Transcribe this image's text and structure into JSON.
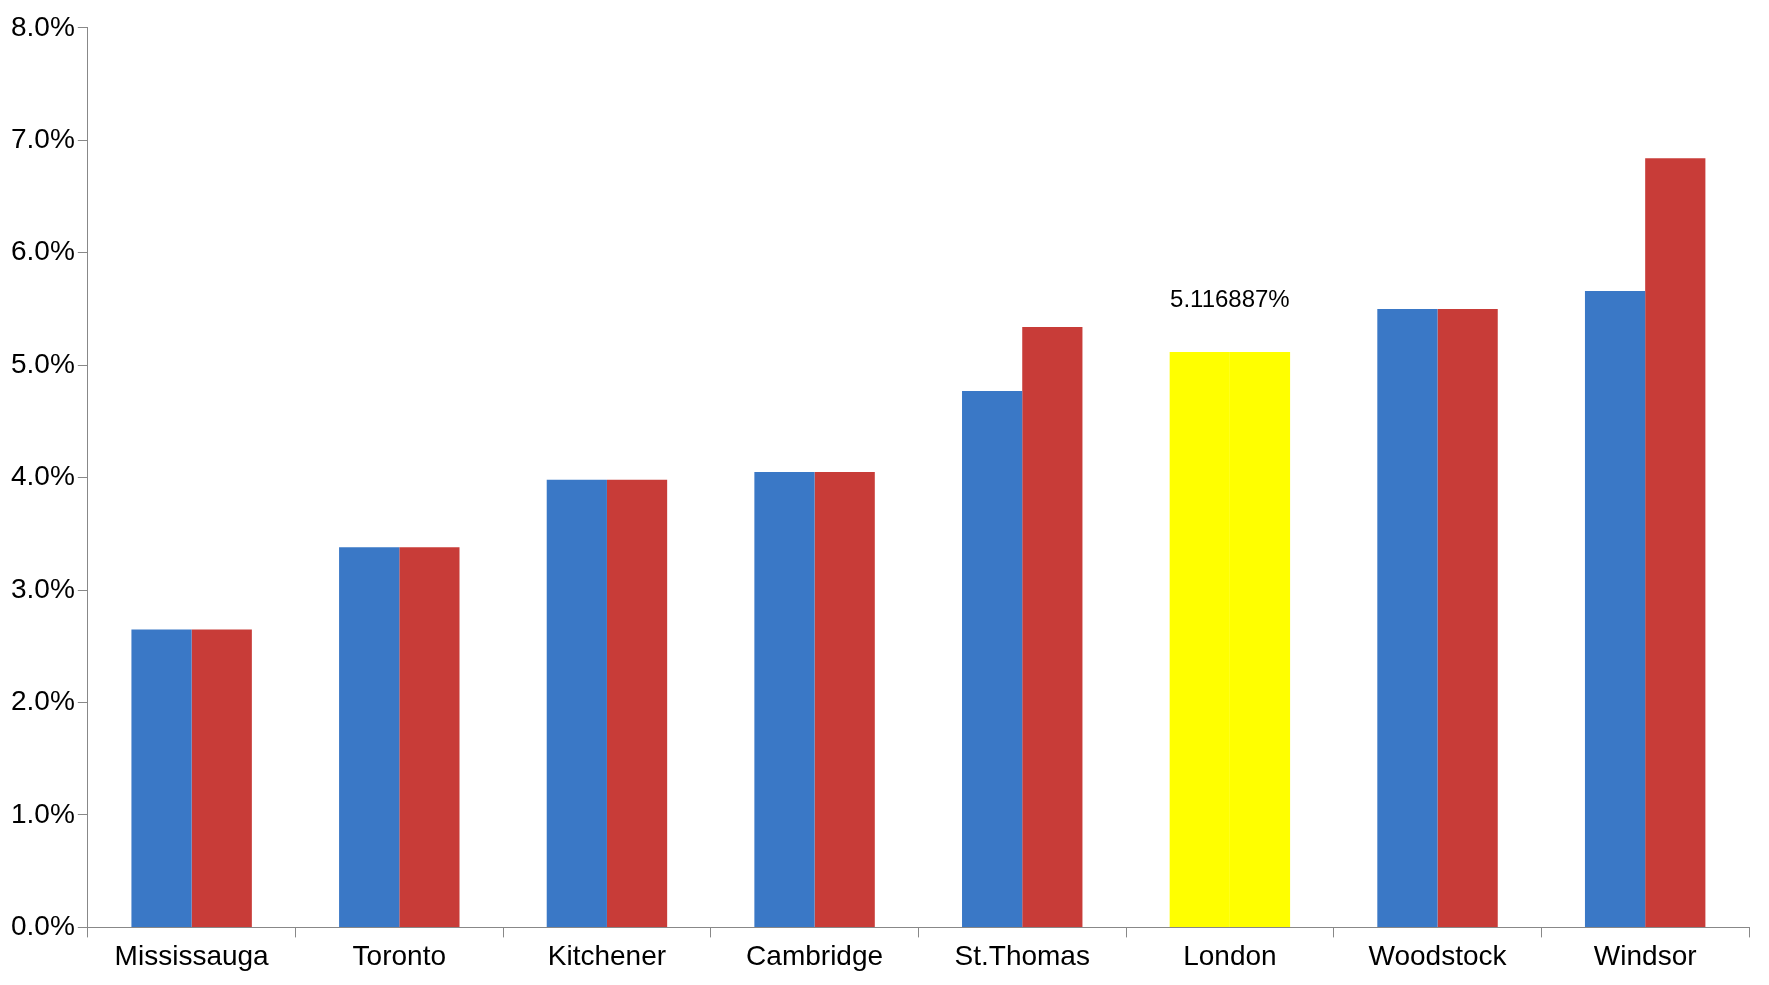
{
  "chart_data": {
    "type": "bar",
    "categories": [
      "Mississauga",
      "Toronto",
      "Kitchener",
      "Cambridge",
      "St.Thomas",
      "London",
      "Woodstock",
      "Windsor"
    ],
    "series": [
      {
        "color": "#3a78c6",
        "colors": [
          null,
          null,
          null,
          null,
          null,
          "#ffff00",
          null,
          null
        ],
        "values": [
          2.65,
          3.38,
          3.98,
          4.05,
          4.77,
          5.116887,
          5.5,
          5.66
        ]
      },
      {
        "color": "#c83c38",
        "colors": [
          null,
          null,
          null,
          null,
          null,
          "#ffff00",
          null,
          null
        ],
        "values": [
          2.65,
          3.38,
          3.98,
          4.05,
          5.34,
          5.116887,
          5.5,
          6.84
        ],
        "value_labels": [
          null,
          null,
          null,
          null,
          null,
          "5.116887%",
          null,
          null
        ]
      }
    ],
    "ylim": [
      0,
      8
    ],
    "yticks": [
      {
        "value": 0,
        "label": "0.0%"
      },
      {
        "value": 1,
        "label": "1.0%"
      },
      {
        "value": 2,
        "label": "2.0%"
      },
      {
        "value": 3,
        "label": "3.0%"
      },
      {
        "value": 4,
        "label": "4.0%"
      },
      {
        "value": 5,
        "label": "5.0%"
      },
      {
        "value": 6,
        "label": "6.0%"
      },
      {
        "value": 7,
        "label": "7.0%"
      },
      {
        "value": 8,
        "label": "8.0%"
      }
    ],
    "grid": false,
    "legend": false
  }
}
